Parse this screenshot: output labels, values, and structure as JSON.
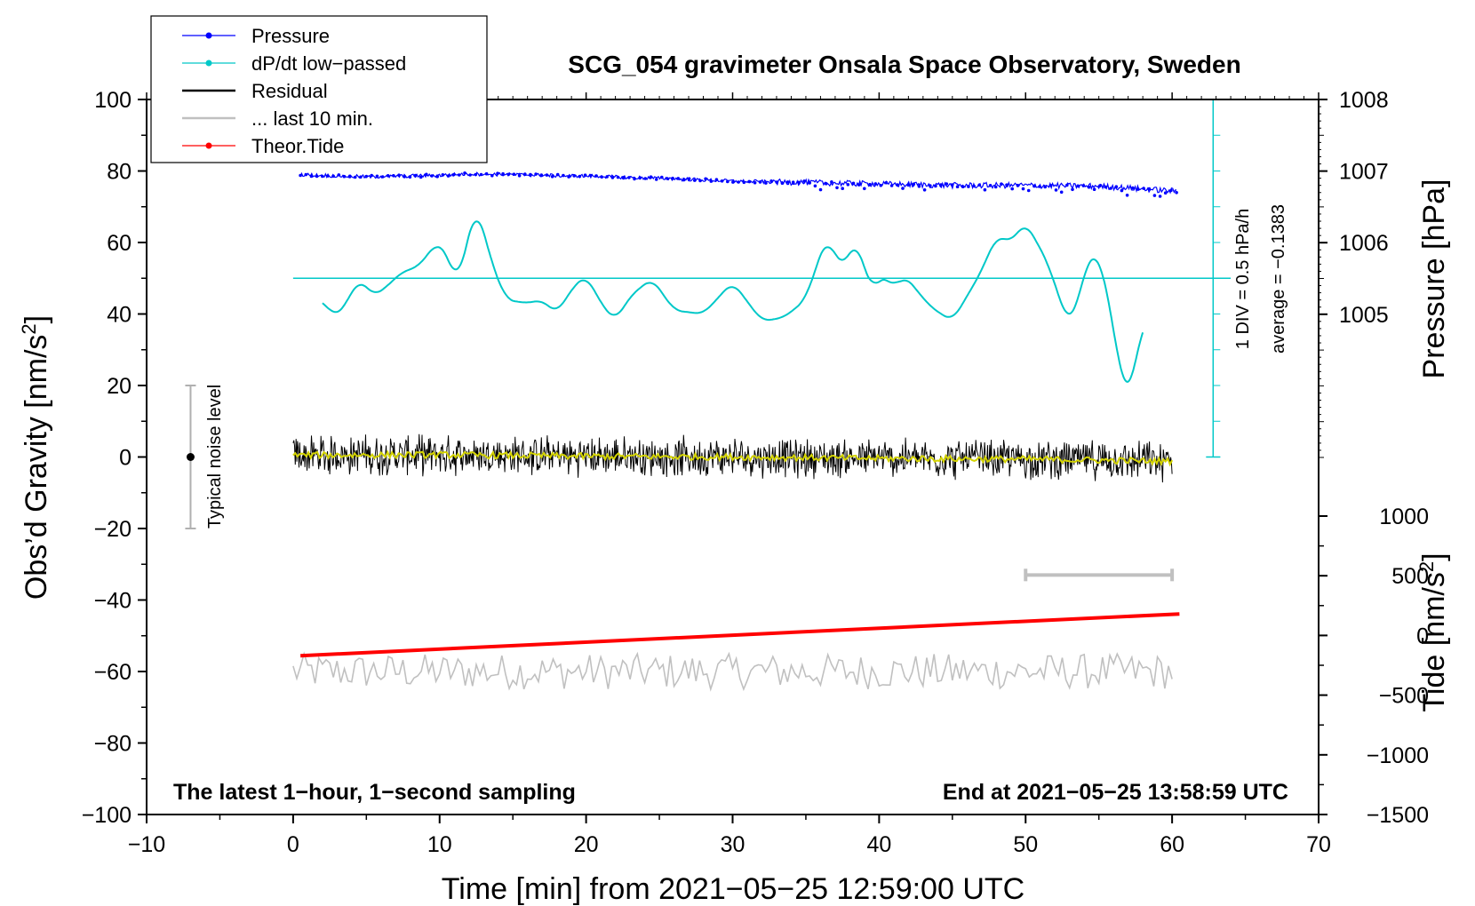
{
  "chart_data": {
    "type": "line",
    "title": "SCG_054 gravimeter Onsala Space Observatory, Sweden",
    "xlabel": "Time [min] from 2021−05−25 12:59:00 UTC",
    "ylabel_left": "Obs’d Gravity [nm/s",
    "ylabel_left_sup": "2",
    "ylabel_left_end": "]",
    "ylabel_right_pressure": "Pressure [hPa]",
    "ylabel_right_tide": "Tide [nm/s",
    "ylabel_right_tide_sup": "2",
    "ylabel_right_tide_end": "]",
    "xlim": [
      -10,
      70
    ],
    "ylim": [
      -100,
      100
    ],
    "pressure_ylim": [
      1003.0,
      1008.0
    ],
    "tide_ylim": [
      -1500,
      1000
    ],
    "x_ticks": [
      "−10",
      "0",
      "10",
      "20",
      "30",
      "40",
      "50",
      "60",
      "70"
    ],
    "y_ticks": [
      "100",
      "80",
      "60",
      "40",
      "20",
      "0",
      "−20",
      "−40",
      "−60",
      "−80",
      "−100"
    ],
    "pressure_ticks": [
      "1008",
      "1007",
      "1006",
      "1005"
    ],
    "tide_ticks": [
      "1000",
      "500",
      "0",
      "−500",
      "−1000",
      "−1500"
    ],
    "bottom_left_note": "The latest 1−hour, 1−second sampling",
    "bottom_right_note": "End at 2021−05−25 13:58:59 UTC",
    "noise_bar": {
      "x": -7,
      "center": 0,
      "half_range": 20,
      "label": "Typical noise level"
    },
    "dpdt_scale": {
      "label": "1 DIV = 0.5 hPa/h",
      "average_label": "average = −0.1383",
      "baseline": 50
    },
    "tide_scale_bar": {
      "x_start": 50,
      "x_end": 60,
      "y_gravity": -33
    },
    "legend": [
      {
        "label": "Pressure",
        "color": "#0000ff",
        "marker": true
      },
      {
        "label": "dP/dt low−passed",
        "color": "#00c8c8",
        "marker": true
      },
      {
        "label": "Residual",
        "color": "#000000",
        "marker": false
      },
      {
        "label": "... last 10 min.",
        "color": "#c0c0c0",
        "marker": false
      },
      {
        "label": "Theor.Tide",
        "color": "#ff0000",
        "marker": true
      }
    ],
    "series": [
      {
        "name": "Pressure",
        "axis": "pressure",
        "color": "#0000ff",
        "x": [
          0.5,
          5,
          10,
          12,
          15,
          20,
          25,
          30,
          35,
          40,
          45,
          50,
          55,
          60.3
        ],
        "values": [
          1006.95,
          1006.92,
          1006.94,
          1006.96,
          1006.95,
          1006.93,
          1006.9,
          1006.86,
          1006.84,
          1006.82,
          1006.8,
          1006.8,
          1006.79,
          1006.72
        ]
      },
      {
        "name": "dP/dt low-passed",
        "axis": "gravity",
        "color": "#00c8c8",
        "x": [
          2,
          2.8,
          3.5,
          4.5,
          5.5,
          6.2,
          7.5,
          8.5,
          9.8,
          10.4,
          11.2,
          12.5,
          13.5,
          14.5,
          16,
          17,
          18,
          19,
          20,
          21,
          22,
          23,
          24.5,
          26,
          28,
          30,
          32,
          33.5,
          35,
          36,
          36.5,
          37,
          37.5,
          38,
          38.5,
          39,
          39.5,
          40,
          40.5,
          41,
          41.7,
          42.5,
          43.5,
          45,
          46,
          47,
          48,
          49,
          50,
          51,
          51.5,
          52,
          52.5,
          53,
          53.5,
          54,
          54.5,
          55,
          55.5,
          56,
          56.5,
          57,
          57.5,
          58
        ],
        "values": [
          44,
          39,
          42,
          50,
          45,
          47,
          52,
          53,
          60,
          58,
          48,
          71,
          55,
          44,
          43,
          44,
          40,
          47,
          51,
          43,
          38,
          45,
          50,
          41,
          40,
          49,
          38,
          39,
          44,
          57,
          62,
          56,
          53,
          57,
          61,
          53,
          45,
          51,
          50,
          47,
          51,
          47,
          42,
          38,
          45,
          52,
          62,
          60,
          66,
          58,
          55,
          48,
          42,
          37,
          42,
          52,
          57,
          56,
          48,
          36,
          22,
          17,
          25,
          39
        ]
      },
      {
        "name": "Residual",
        "axis": "gravity",
        "color": "#000000",
        "x": [
          0,
          10,
          20,
          30,
          40,
          50,
          60
        ],
        "values": [
          0.5,
          0.6,
          0.2,
          0.0,
          -0.4,
          -0.6,
          -1.2
        ],
        "noise_amplitude": 4.5
      },
      {
        "name": "Residual smoothed",
        "axis": "gravity",
        "color": "#d4d400",
        "x": [
          0,
          10,
          20,
          30,
          40,
          50,
          60
        ],
        "values": [
          0.5,
          0.6,
          0.2,
          0.0,
          -0.4,
          -0.6,
          -1.2
        ]
      },
      {
        "name": "... last 10 min.",
        "axis": "gravity",
        "color": "#c0c0c0",
        "x": [
          0,
          60
        ],
        "values": [
          -60,
          -60
        ],
        "noise_amplitude": 5
      },
      {
        "name": "Theor.Tide",
        "axis": "tide",
        "color": "#ff0000",
        "x": [
          0.5,
          60.5
        ],
        "values": [
          -170,
          180
        ]
      }
    ]
  }
}
